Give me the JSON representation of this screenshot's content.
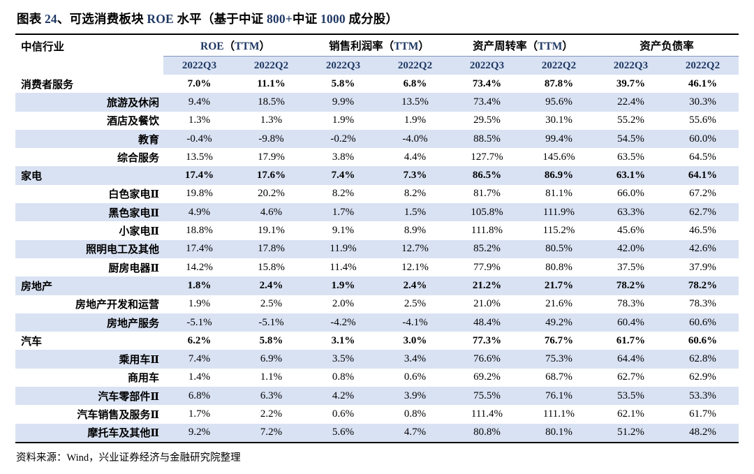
{
  "title_parts": [
    {
      "text": "图表 ",
      "accent": false
    },
    {
      "text": "24",
      "accent": true
    },
    {
      "text": "、可选消费板块 ",
      "accent": false
    },
    {
      "text": "ROE",
      "accent": true
    },
    {
      "text": " 水平（基于中证 ",
      "accent": false
    },
    {
      "text": "800+",
      "accent": true
    },
    {
      "text": "中证 ",
      "accent": false
    },
    {
      "text": "1000",
      "accent": true
    },
    {
      "text": " 成分股）",
      "accent": false
    }
  ],
  "table": {
    "row_header": "中信行业",
    "groups": [
      "ROE（TTM）",
      "销售利润率（TTM）",
      "资产周转率（TTM）",
      "资产负债率"
    ],
    "periods": [
      "2022Q3",
      "2022Q2",
      "2022Q3",
      "2022Q2",
      "2022Q3",
      "2022Q2",
      "2022Q3",
      "2022Q2"
    ],
    "rows": [
      {
        "name": "消费者服务",
        "level": "parent",
        "values": [
          "7.0%",
          "11.1%",
          "5.8%",
          "6.8%",
          "73.4%",
          "87.8%",
          "39.7%",
          "46.1%"
        ]
      },
      {
        "name": "旅游及休闲",
        "level": "child",
        "values": [
          "9.4%",
          "18.5%",
          "9.9%",
          "13.5%",
          "73.4%",
          "95.6%",
          "22.4%",
          "30.3%"
        ]
      },
      {
        "name": "酒店及餐饮",
        "level": "child",
        "values": [
          "1.3%",
          "1.3%",
          "1.9%",
          "1.9%",
          "29.5%",
          "30.1%",
          "55.2%",
          "55.6%"
        ]
      },
      {
        "name": "教育",
        "level": "child",
        "values": [
          "-0.4%",
          "-9.8%",
          "-0.2%",
          "-4.0%",
          "88.5%",
          "99.4%",
          "54.5%",
          "60.0%"
        ]
      },
      {
        "name": "综合服务",
        "level": "child",
        "values": [
          "13.5%",
          "17.9%",
          "3.8%",
          "4.4%",
          "127.7%",
          "145.6%",
          "63.5%",
          "64.5%"
        ]
      },
      {
        "name": "家电",
        "level": "parent",
        "values": [
          "17.4%",
          "17.6%",
          "7.4%",
          "7.3%",
          "86.5%",
          "86.9%",
          "63.1%",
          "64.1%"
        ]
      },
      {
        "name": "白色家电Ⅱ",
        "level": "child",
        "values": [
          "19.8%",
          "20.2%",
          "8.2%",
          "8.2%",
          "81.7%",
          "81.1%",
          "66.0%",
          "67.2%"
        ]
      },
      {
        "name": "黑色家电Ⅱ",
        "level": "child",
        "values": [
          "4.9%",
          "4.6%",
          "1.7%",
          "1.5%",
          "105.8%",
          "111.9%",
          "63.3%",
          "62.7%"
        ]
      },
      {
        "name": "小家电Ⅱ",
        "level": "child",
        "values": [
          "18.8%",
          "19.1%",
          "9.1%",
          "8.9%",
          "111.8%",
          "115.2%",
          "45.6%",
          "46.5%"
        ]
      },
      {
        "name": "照明电工及其他",
        "level": "child",
        "values": [
          "17.4%",
          "17.8%",
          "11.9%",
          "12.7%",
          "85.2%",
          "80.5%",
          "42.0%",
          "42.6%"
        ]
      },
      {
        "name": "厨房电器Ⅱ",
        "level": "child",
        "values": [
          "14.2%",
          "15.8%",
          "11.4%",
          "12.1%",
          "77.9%",
          "80.8%",
          "37.5%",
          "37.9%"
        ]
      },
      {
        "name": "房地产",
        "level": "parent",
        "values": [
          "1.8%",
          "2.4%",
          "1.9%",
          "2.4%",
          "21.2%",
          "21.7%",
          "78.2%",
          "78.2%"
        ]
      },
      {
        "name": "房地产开发和运营",
        "level": "child",
        "values": [
          "1.9%",
          "2.5%",
          "2.0%",
          "2.5%",
          "21.0%",
          "21.6%",
          "78.3%",
          "78.3%"
        ]
      },
      {
        "name": "房地产服务",
        "level": "child",
        "values": [
          "-5.1%",
          "-5.1%",
          "-4.2%",
          "-4.1%",
          "48.4%",
          "49.2%",
          "60.4%",
          "60.6%"
        ]
      },
      {
        "name": "汽车",
        "level": "parent",
        "values": [
          "6.2%",
          "5.8%",
          "3.1%",
          "3.0%",
          "77.3%",
          "76.7%",
          "61.7%",
          "60.6%"
        ]
      },
      {
        "name": "乘用车Ⅱ",
        "level": "child",
        "values": [
          "7.4%",
          "6.9%",
          "3.5%",
          "3.4%",
          "76.6%",
          "75.3%",
          "64.4%",
          "62.8%"
        ]
      },
      {
        "name": "商用车",
        "level": "child",
        "values": [
          "1.4%",
          "1.1%",
          "0.8%",
          "0.6%",
          "69.2%",
          "68.7%",
          "62.7%",
          "62.9%"
        ]
      },
      {
        "name": "汽车零部件Ⅱ",
        "level": "child",
        "values": [
          "6.8%",
          "6.3%",
          "4.2%",
          "3.9%",
          "75.5%",
          "76.1%",
          "53.5%",
          "53.3%"
        ]
      },
      {
        "name": "汽车销售及服务Ⅱ",
        "level": "child",
        "values": [
          "1.7%",
          "2.2%",
          "0.6%",
          "0.8%",
          "111.4%",
          "111.1%",
          "62.1%",
          "61.7%"
        ]
      },
      {
        "name": "摩托车及其他Ⅱ",
        "level": "child",
        "values": [
          "9.2%",
          "7.2%",
          "5.6%",
          "4.7%",
          "80.8%",
          "80.1%",
          "51.2%",
          "48.2%"
        ]
      }
    ]
  },
  "source": "资料来源：Wind，兴业证券经济与金融研究院整理",
  "colors": {
    "header_accent": "#1F3864",
    "stripe": "#D9E2F3",
    "band_border": "#7F94BC",
    "table_border": "#000000",
    "body_text": "#000000"
  }
}
